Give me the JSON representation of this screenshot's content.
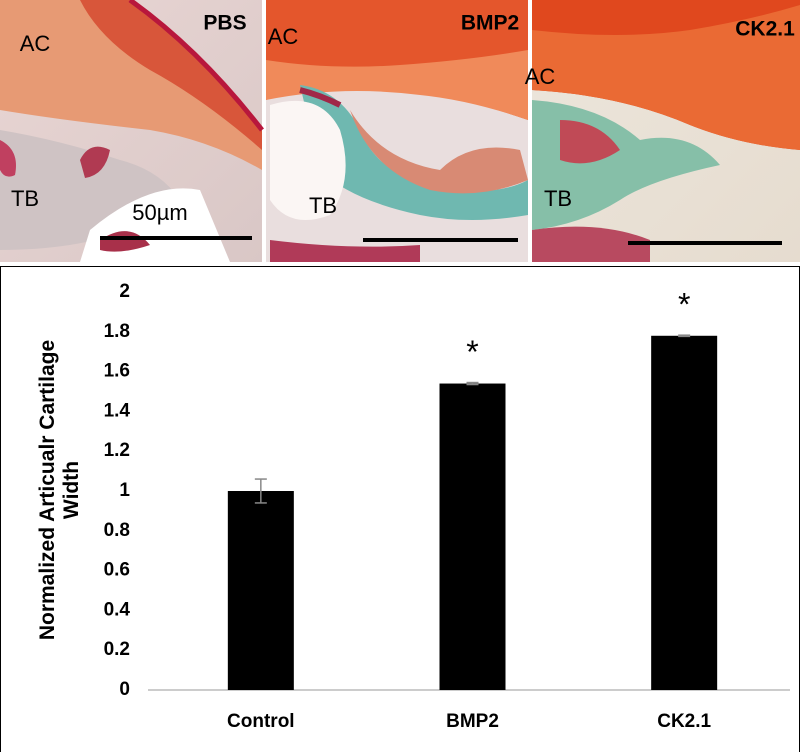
{
  "panels": [
    {
      "title": "PBS",
      "labels": [
        "AC",
        "TB"
      ],
      "scale": "50µm"
    },
    {
      "title": "BMP2",
      "labels": [
        "AC",
        "TB"
      ]
    },
    {
      "title": "CK2.1",
      "labels": [
        "AC",
        "TB"
      ]
    }
  ],
  "chart_data": {
    "type": "bar",
    "y_label": "Normalized Articualr Cartilage Width",
    "categories": [
      "Control",
      "BMP2",
      "CK2.1"
    ],
    "values": [
      1.0,
      1.54,
      1.78
    ],
    "errors": [
      0.06,
      0.005,
      0.003
    ],
    "significance": [
      null,
      "*",
      "*"
    ],
    "color": "#000000",
    "ylim": [
      0,
      2
    ],
    "yticks": [
      0,
      0.2,
      0.4,
      0.6,
      0.8,
      1,
      1.2,
      1.4,
      1.6,
      1.8,
      2
    ],
    "grid": false
  }
}
